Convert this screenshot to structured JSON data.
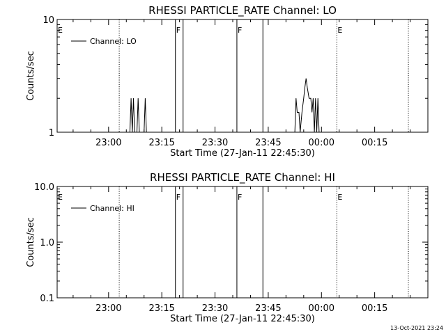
{
  "footer": {
    "timestamp": "13-Oct-2021 23:24"
  },
  "chart_data": [
    {
      "type": "line",
      "title": "RHESSI PARTICLE_RATE Channel: LO",
      "xlabel": "Start Time (27-Jan-11 22:45:30)",
      "ylabel": "Counts/sec",
      "yscale": "log",
      "ylim": [
        1,
        10
      ],
      "y_ticks": [
        {
          "v": 1,
          "label": "1"
        },
        {
          "v": 10,
          "label": "10"
        }
      ],
      "xlim": [
        "22:45:30",
        "00:30:00"
      ],
      "x_ticks": [
        "23:00",
        "23:15",
        "23:30",
        "23:45",
        "00:00",
        "00:15"
      ],
      "legend": {
        "label": "Channel: LO",
        "placement": "top-left"
      },
      "markers": [
        {
          "label": "E",
          "time": "22:45:30",
          "style": "label"
        },
        {
          "label": "",
          "time": "23:03:00",
          "style": "dotted"
        },
        {
          "label": "F",
          "time": "23:18:50",
          "style": "solid"
        },
        {
          "label": "",
          "time": "23:21:00",
          "style": "solid"
        },
        {
          "label": "F",
          "time": "23:36:10",
          "style": "solid"
        },
        {
          "label": "",
          "time": "23:43:30",
          "style": "solid"
        },
        {
          "label": "E",
          "time": "00:04:20",
          "style": "dotted"
        },
        {
          "label": "",
          "time": "00:24:30",
          "style": "dotted"
        }
      ],
      "series": [
        {
          "color": "#000000",
          "points": [
            [
              "23:06:00",
              1
            ],
            [
              "23:06:20",
              2
            ],
            [
              "23:06:40",
              1
            ],
            [
              "23:07:00",
              2
            ],
            [
              "23:07:20",
              1
            ],
            [
              "23:08:00",
              1
            ],
            [
              "23:08:20",
              2
            ],
            [
              "23:08:40",
              1
            ],
            [
              "23:10:00",
              1
            ],
            [
              "23:10:20",
              2
            ],
            [
              "23:10:40",
              1
            ],
            [
              "23:52:30",
              1
            ],
            [
              "23:52:50",
              2
            ],
            [
              "23:53:10",
              1.5
            ],
            [
              "23:53:40",
              1.5
            ],
            [
              "23:54:00",
              1
            ],
            [
              "23:54:30",
              1.5
            ],
            [
              "23:55:00",
              2
            ],
            [
              "23:55:20",
              2.5
            ],
            [
              "23:55:40",
              3
            ],
            [
              "23:56:00",
              2.5
            ],
            [
              "23:56:30",
              2
            ],
            [
              "23:57:00",
              2
            ],
            [
              "23:57:20",
              1.5
            ],
            [
              "23:57:40",
              2
            ],
            [
              "23:58:00",
              1
            ],
            [
              "23:58:20",
              2
            ],
            [
              "23:58:40",
              1
            ],
            [
              "23:59:00",
              2
            ],
            [
              "23:59:20",
              1
            ]
          ]
        }
      ]
    },
    {
      "type": "line",
      "title": "RHESSI PARTICLE_RATE Channel: HI",
      "xlabel": "Start Time (27-Jan-11 22:45:30)",
      "ylabel": "Counts/sec",
      "yscale": "log",
      "ylim": [
        0.1,
        10
      ],
      "y_ticks": [
        {
          "v": 0.1,
          "label": "0.1"
        },
        {
          "v": 1,
          "label": "1.0"
        },
        {
          "v": 10,
          "label": "10.0"
        }
      ],
      "xlim": [
        "22:45:30",
        "00:30:00"
      ],
      "x_ticks": [
        "23:00",
        "23:15",
        "23:30",
        "23:45",
        "00:00",
        "00:15"
      ],
      "legend": {
        "label": "Channel: HI",
        "placement": "top-left"
      },
      "markers": [
        {
          "label": "E",
          "time": "22:45:30",
          "style": "label"
        },
        {
          "label": "",
          "time": "23:03:00",
          "style": "dotted"
        },
        {
          "label": "F",
          "time": "23:18:50",
          "style": "solid"
        },
        {
          "label": "",
          "time": "23:21:00",
          "style": "solid"
        },
        {
          "label": "F",
          "time": "23:36:10",
          "style": "solid"
        },
        {
          "label": "",
          "time": "23:43:30",
          "style": "solid"
        },
        {
          "label": "E",
          "time": "00:04:20",
          "style": "dotted"
        },
        {
          "label": "",
          "time": "00:24:30",
          "style": "dotted"
        }
      ],
      "series": [
        {
          "color": "#000000",
          "points": []
        }
      ]
    }
  ]
}
